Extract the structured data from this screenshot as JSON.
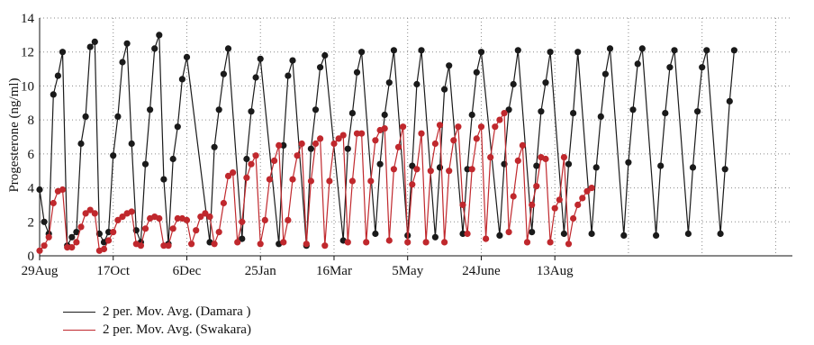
{
  "chart_data": {
    "type": "line",
    "title": "",
    "xlabel": "",
    "ylabel": "Progesterone (ng/ml)",
    "ylim": [
      0,
      14
    ],
    "yticks": [
      "0",
      "2",
      "4",
      "6",
      "8",
      "10",
      "12",
      "14"
    ],
    "xticks": [
      "29Aug",
      "17Oct",
      "6Dec",
      "25Jan",
      "16Mar",
      "5May",
      "24June",
      "13Aug"
    ],
    "xtick_index": [
      0,
      16,
      32,
      48,
      64,
      80,
      96,
      112
    ],
    "x_count": 136,
    "grid": "dotted",
    "legend_position": "bottom-left",
    "series": [
      {
        "name": "2 per. Mov. Avg. (Damara )",
        "color": "#1a1a1a",
        "points": [
          [
            0,
            3.9
          ],
          [
            1,
            2.0
          ],
          [
            2,
            1.3
          ],
          [
            3,
            9.5
          ],
          [
            4,
            10.6
          ],
          [
            5,
            12.0
          ],
          [
            6,
            0.6
          ],
          [
            7,
            1.1
          ],
          [
            8,
            1.4
          ],
          [
            9,
            6.6
          ],
          [
            10,
            8.2
          ],
          [
            11,
            12.3
          ],
          [
            12,
            12.6
          ],
          [
            13,
            1.3
          ],
          [
            14,
            0.8
          ],
          [
            15,
            1.4
          ],
          [
            16,
            5.9
          ],
          [
            17,
            8.2
          ],
          [
            18,
            11.4
          ],
          [
            19,
            12.5
          ],
          [
            20,
            6.6
          ],
          [
            21,
            1.5
          ],
          [
            22,
            0.8
          ],
          [
            23,
            5.4
          ],
          [
            24,
            8.6
          ],
          [
            25,
            12.2
          ],
          [
            26,
            13.0
          ],
          [
            27,
            4.5
          ],
          [
            28,
            0.7
          ],
          [
            29,
            5.7
          ],
          [
            30,
            7.6
          ],
          [
            31,
            10.4
          ],
          [
            32,
            11.7
          ],
          [
            37,
            0.8
          ],
          [
            38,
            6.4
          ],
          [
            39,
            8.6
          ],
          [
            40,
            10.7
          ],
          [
            41,
            12.2
          ],
          [
            44,
            1.0
          ],
          [
            45,
            5.7
          ],
          [
            46,
            8.5
          ],
          [
            47,
            10.5
          ],
          [
            48,
            11.6
          ],
          [
            52,
            0.7
          ],
          [
            53,
            6.5
          ],
          [
            54,
            10.6
          ],
          [
            55,
            11.5
          ],
          [
            58,
            0.6
          ],
          [
            59,
            6.3
          ],
          [
            60,
            8.6
          ],
          [
            61,
            11.1
          ],
          [
            62,
            11.8
          ],
          [
            66,
            0.9
          ],
          [
            67,
            6.3
          ],
          [
            68,
            8.4
          ],
          [
            69,
            10.8
          ],
          [
            70,
            12.0
          ],
          [
            73,
            1.3
          ],
          [
            74,
            5.4
          ],
          [
            75,
            8.3
          ],
          [
            76,
            10.2
          ],
          [
            77,
            12.1
          ],
          [
            80,
            1.2
          ],
          [
            81,
            5.3
          ],
          [
            82,
            10.1
          ],
          [
            83,
            12.1
          ],
          [
            86,
            1.1
          ],
          [
            87,
            5.2
          ],
          [
            88,
            9.8
          ],
          [
            89,
            11.2
          ],
          [
            92,
            1.3
          ],
          [
            93,
            5.1
          ],
          [
            94,
            8.3
          ],
          [
            95,
            10.8
          ],
          [
            96,
            12.0
          ],
          [
            100,
            1.2
          ],
          [
            101,
            5.4
          ],
          [
            102,
            8.6
          ],
          [
            103,
            10.1
          ],
          [
            104,
            12.1
          ],
          [
            107,
            1.4
          ],
          [
            108,
            5.3
          ],
          [
            109,
            8.5
          ],
          [
            110,
            10.2
          ],
          [
            111,
            12.0
          ],
          [
            114,
            1.3
          ],
          [
            115,
            5.4
          ],
          [
            116,
            8.4
          ],
          [
            117,
            12.0
          ],
          [
            120,
            1.3
          ],
          [
            121,
            5.2
          ],
          [
            122,
            8.2
          ],
          [
            123,
            10.7
          ],
          [
            124,
            12.2
          ],
          [
            127,
            1.2
          ],
          [
            128,
            5.5
          ],
          [
            129,
            8.6
          ],
          [
            130,
            11.3
          ],
          [
            131,
            12.2
          ],
          [
            134,
            1.2
          ],
          [
            135,
            5.3
          ],
          [
            136,
            8.4
          ],
          [
            137,
            11.1
          ],
          [
            138,
            12.1
          ],
          [
            141,
            1.3
          ],
          [
            142,
            5.2
          ],
          [
            143,
            8.5
          ],
          [
            144,
            11.1
          ],
          [
            145,
            12.1
          ],
          [
            148,
            1.3
          ],
          [
            149,
            5.1
          ],
          [
            150,
            9.1
          ],
          [
            151,
            12.1
          ]
        ]
      },
      {
        "name": "2 per. Mov. Avg. (Swakara)",
        "color": "#c0282d",
        "points": [
          [
            0,
            0.3
          ],
          [
            1,
            0.6
          ],
          [
            2,
            1.1
          ],
          [
            3,
            3.1
          ],
          [
            4,
            3.8
          ],
          [
            5,
            3.9
          ],
          [
            6,
            0.5
          ],
          [
            7,
            0.5
          ],
          [
            8,
            0.8
          ],
          [
            9,
            1.7
          ],
          [
            10,
            2.5
          ],
          [
            11,
            2.7
          ],
          [
            12,
            2.5
          ],
          [
            13,
            0.3
          ],
          [
            14,
            0.4
          ],
          [
            15,
            0.9
          ],
          [
            16,
            1.4
          ],
          [
            17,
            2.1
          ],
          [
            18,
            2.3
          ],
          [
            19,
            2.5
          ],
          [
            20,
            2.6
          ],
          [
            21,
            0.7
          ],
          [
            22,
            0.6
          ],
          [
            23,
            1.6
          ],
          [
            24,
            2.2
          ],
          [
            25,
            2.3
          ],
          [
            26,
            2.2
          ],
          [
            27,
            0.6
          ],
          [
            28,
            0.6
          ],
          [
            29,
            1.6
          ],
          [
            30,
            2.2
          ],
          [
            31,
            2.2
          ],
          [
            32,
            2.1
          ],
          [
            33,
            0.7
          ],
          [
            34,
            1.5
          ],
          [
            35,
            2.3
          ],
          [
            36,
            2.5
          ],
          [
            37,
            2.3
          ],
          [
            38,
            0.7
          ],
          [
            39,
            1.4
          ],
          [
            40,
            3.1
          ],
          [
            41,
            4.7
          ],
          [
            42,
            4.9
          ],
          [
            43,
            0.8
          ],
          [
            44,
            2.0
          ],
          [
            45,
            4.6
          ],
          [
            46,
            5.4
          ],
          [
            47,
            5.9
          ],
          [
            48,
            0.7
          ],
          [
            49,
            2.1
          ],
          [
            50,
            4.5
          ],
          [
            51,
            5.6
          ],
          [
            52,
            6.5
          ],
          [
            53,
            0.8
          ],
          [
            54,
            2.1
          ],
          [
            55,
            4.5
          ],
          [
            56,
            5.9
          ],
          [
            57,
            6.6
          ],
          [
            58,
            0.7
          ],
          [
            59,
            4.4
          ],
          [
            60,
            6.6
          ],
          [
            61,
            6.9
          ],
          [
            62,
            0.6
          ],
          [
            63,
            4.4
          ],
          [
            64,
            6.6
          ],
          [
            65,
            6.9
          ],
          [
            66,
            7.1
          ],
          [
            67,
            0.8
          ],
          [
            68,
            4.4
          ],
          [
            69,
            7.2
          ],
          [
            70,
            7.2
          ],
          [
            71,
            0.8
          ],
          [
            72,
            4.4
          ],
          [
            73,
            6.8
          ],
          [
            74,
            7.4
          ],
          [
            75,
            7.5
          ],
          [
            76,
            0.9
          ],
          [
            77,
            5.1
          ],
          [
            78,
            6.4
          ],
          [
            79,
            7.6
          ],
          [
            80,
            0.8
          ],
          [
            81,
            4.2
          ],
          [
            82,
            5.1
          ],
          [
            83,
            7.2
          ],
          [
            84,
            0.8
          ],
          [
            85,
            5.0
          ],
          [
            86,
            6.6
          ],
          [
            87,
            7.7
          ],
          [
            88,
            0.8
          ],
          [
            89,
            5.0
          ],
          [
            90,
            6.8
          ],
          [
            91,
            7.6
          ],
          [
            92,
            3.0
          ],
          [
            93,
            1.3
          ],
          [
            94,
            5.1
          ],
          [
            95,
            6.9
          ],
          [
            96,
            7.6
          ],
          [
            97,
            1.0
          ],
          [
            98,
            5.8
          ],
          [
            99,
            7.6
          ],
          [
            100,
            8.0
          ],
          [
            101,
            8.4
          ],
          [
            102,
            1.4
          ],
          [
            103,
            3.5
          ],
          [
            104,
            5.6
          ],
          [
            105,
            6.5
          ],
          [
            106,
            0.8
          ],
          [
            107,
            3.0
          ],
          [
            108,
            4.1
          ],
          [
            109,
            5.8
          ],
          [
            110,
            5.7
          ],
          [
            111,
            0.8
          ],
          [
            112,
            2.8
          ],
          [
            113,
            3.3
          ],
          [
            114,
            5.8
          ],
          [
            115,
            0.7
          ],
          [
            116,
            2.2
          ],
          [
            117,
            3.0
          ],
          [
            118,
            3.4
          ],
          [
            119,
            3.8
          ],
          [
            120,
            4.0
          ]
        ]
      }
    ]
  }
}
